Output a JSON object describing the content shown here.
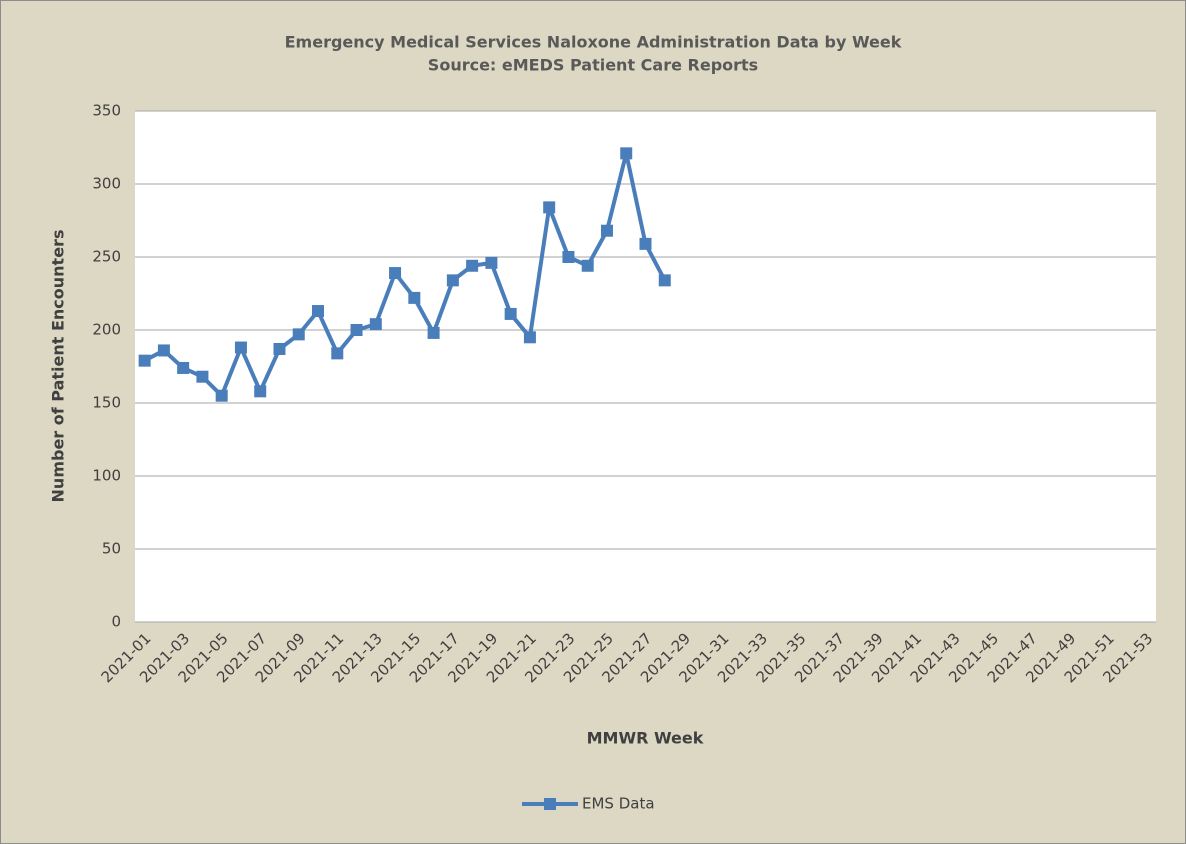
{
  "chart_data": {
    "type": "line",
    "title": "Emergency Medical Services Naloxone Administration Data by Week",
    "subtitle": "Source: eMEDS Patient Care Reports",
    "x_label": "MMWR Week",
    "y_label": "Number of Patient Encounters",
    "categories": [
      "2021-01",
      null,
      "2021-03",
      null,
      "2021-05",
      null,
      "2021-07",
      null,
      "2021-09",
      null,
      "2021-11",
      null,
      "2021-13",
      null,
      "2021-15",
      null,
      "2021-17",
      null,
      "2021-19",
      null,
      "2021-21",
      null,
      "2021-23",
      null,
      "2021-25",
      null,
      "2021-27",
      null,
      "2021-29",
      null,
      "2021-31",
      null,
      "2021-33",
      null,
      "2021-35",
      null,
      "2021-37",
      null,
      "2021-39",
      null,
      "2021-41",
      null,
      "2021-43",
      null,
      "2021-45",
      null,
      "2021-47",
      null,
      "2021-49",
      null,
      "2021-51",
      null,
      "2021-53"
    ],
    "series": [
      {
        "name": "EMS Data",
        "color": "#4a7ebb",
        "values": [
          179,
          186,
          174,
          168,
          155,
          188,
          158,
          187,
          197,
          213,
          184,
          200,
          204,
          239,
          222,
          198,
          234,
          244,
          246,
          211,
          195,
          284,
          250,
          244,
          268,
          321,
          259,
          234,
          null,
          null,
          null,
          null,
          null,
          null,
          null,
          null,
          null,
          null,
          null,
          null,
          null,
          null,
          null,
          null,
          null,
          null,
          null,
          null,
          null,
          null,
          null,
          null,
          null
        ]
      }
    ],
    "ylim": [
      0,
      350
    ],
    "yticks": [
      0,
      50,
      100,
      150,
      200,
      250,
      300,
      350
    ],
    "grid": true,
    "legend": "bottom"
  }
}
